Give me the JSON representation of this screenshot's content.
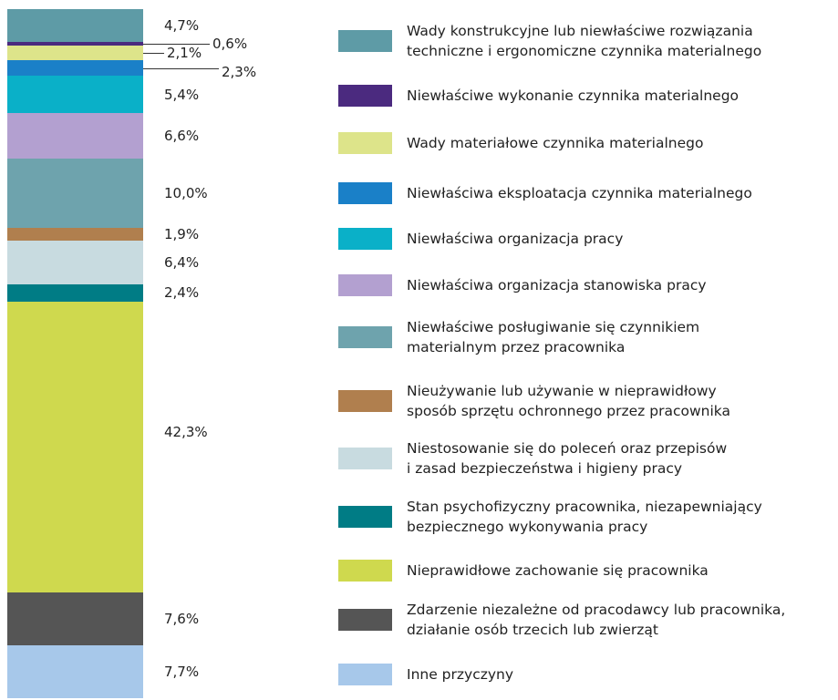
{
  "chart_data": {
    "type": "stacked_bar",
    "ylim": [
      0,
      100
    ],
    "series": [
      {
        "name": "Wady konstrukcyjne lub niewłaściwe rozwiązania\ntechniczne i ergonomiczne czynnika materialnego",
        "color": "#5e9ba6",
        "values": [
          4.7
        ],
        "value_labels": [
          "4,7%"
        ]
      },
      {
        "name": "Niewłaściwe wykonanie czynnika materialnego",
        "color": "#4b2a7f",
        "values": [
          0.6
        ],
        "value_labels": [
          "0,6%"
        ]
      },
      {
        "name": "Wady materiałowe czynnika materialnego",
        "color": "#dde48a",
        "values": [
          2.1
        ],
        "value_labels": [
          "2,1%"
        ]
      },
      {
        "name": "Niewłaściwa eksploatacja czynnika materialnego",
        "color": "#1a80c8",
        "values": [
          2.3
        ],
        "value_labels": [
          "2,3%"
        ]
      },
      {
        "name": "Niewłaściwa organizacja pracy",
        "color": "#0ab0c8",
        "values": [
          5.4
        ],
        "value_labels": [
          "5,4%"
        ]
      },
      {
        "name": "Niewłaściwa organizacja stanowiska pracy",
        "color": "#b3a0d0",
        "values": [
          6.6
        ],
        "value_labels": [
          "6,6%"
        ]
      },
      {
        "name": "Niewłaściwe posługiwanie się czynnikiem\nmaterialnym przez pracownika",
        "color": "#6ea3ad",
        "values": [
          10.0
        ],
        "value_labels": [
          "10,0%"
        ]
      },
      {
        "name": "Nieużywanie lub używanie w nieprawidłowy\nsposób sprzętu ochronnego przez pracownika",
        "color": "#b07f4e",
        "values": [
          1.9
        ],
        "value_labels": [
          "1,9%"
        ]
      },
      {
        "name": "Niestosowanie się do poleceń oraz przepisów\ni zasad bezpieczeństwa i higieny pracy",
        "color": "#c8dbe0",
        "values": [
          6.4
        ],
        "value_labels": [
          "6,4%"
        ]
      },
      {
        "name": "Stan psychofizyczny pracownika, niezapewniający\nbezpiecznego wykonywania pracy",
        "color": "#007c85",
        "values": [
          2.4
        ],
        "value_labels": [
          "2,4%"
        ]
      },
      {
        "name": "Nieprawidłowe zachowanie się pracownika",
        "color": "#cfd94e",
        "values": [
          42.3
        ],
        "value_labels": [
          "42,3%"
        ]
      },
      {
        "name": "Zdarzenie niezależne od pracodawcy lub pracownika,\ndziałanie osób trzecich lub zwierząt",
        "color": "#555555",
        "values": [
          7.6
        ],
        "value_labels": [
          "7,6%"
        ]
      },
      {
        "name": "Inne przyczyny",
        "color": "#a7c8ea",
        "values": [
          7.7
        ],
        "value_labels": [
          "7,7%"
        ]
      }
    ]
  }
}
